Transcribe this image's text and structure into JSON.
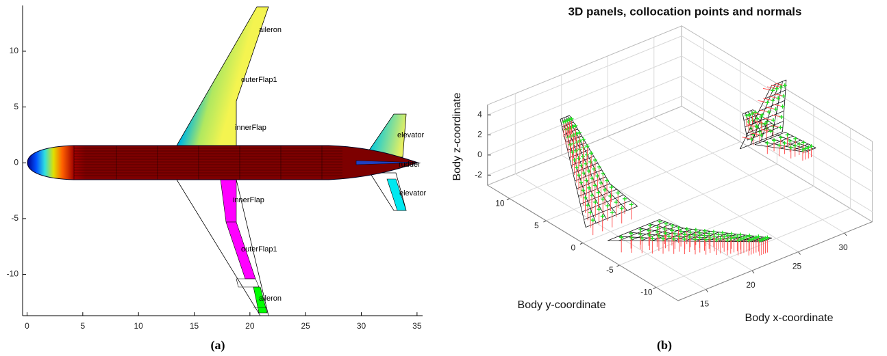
{
  "chart_data": [
    {
      "type": "planform",
      "xlim": [
        -0.4,
        35.5
      ],
      "ylim": [
        -13.7,
        14.1
      ],
      "xticks": [
        0,
        5,
        10,
        15,
        20,
        25,
        30,
        35
      ],
      "yticks": [
        -10,
        -5,
        0,
        5,
        10
      ],
      "annotations": [
        "aileron",
        "outerFlap1",
        "innerFlap",
        "elevator",
        "rudder",
        "innerFlap",
        "outerFlap1",
        "aileron",
        "elevator"
      ],
      "caption": "(a)"
    },
    {
      "type": "panel3d",
      "title": "3D panels, collocation points and normals",
      "xlabel": "Body x-coordinate",
      "ylabel": "Body y-coordinate",
      "zlabel": "Body z-coordinate",
      "xlim": [
        12,
        33
      ],
      "ylim": [
        -13,
        13
      ],
      "zlim": [
        -3,
        5
      ],
      "xticks": [
        15,
        20,
        25,
        30
      ],
      "yticks": [
        -10,
        -5,
        0,
        5,
        10
      ],
      "zticks": [
        -2,
        0,
        2,
        4
      ],
      "grid": true,
      "caption": "(b)"
    }
  ]
}
